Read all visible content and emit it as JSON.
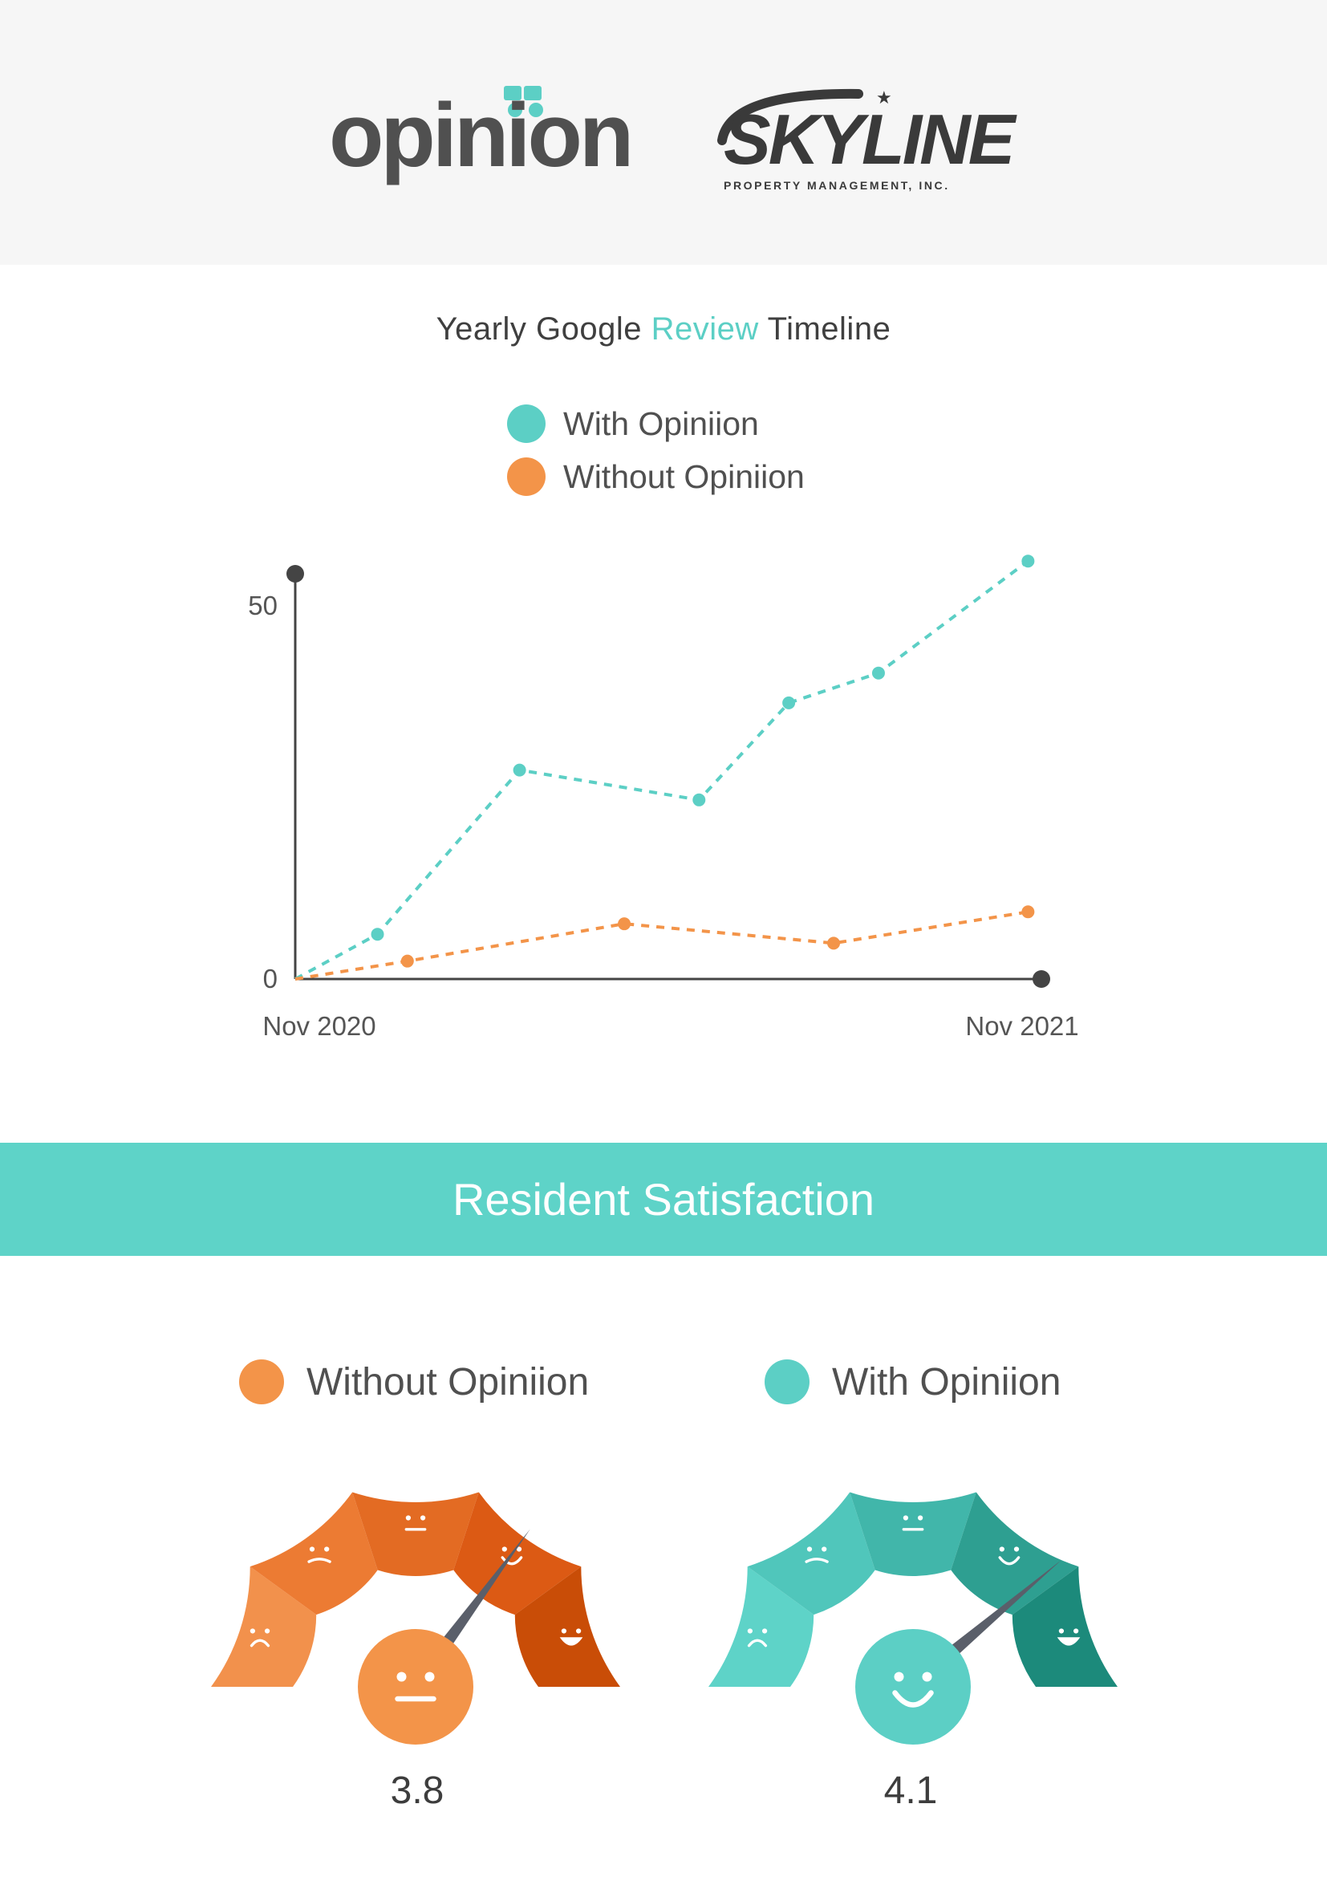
{
  "header": {
    "logo_left": {
      "text": "opinion"
    },
    "logo_right": {
      "text": "SKYLINE",
      "subtext": "PROPERTY MANAGEMENT, INC."
    }
  },
  "colors": {
    "teal": "#5ccfc5",
    "orange": "#f39449",
    "axis": "#444444"
  },
  "chart_data": {
    "type": "line",
    "title_parts": [
      "Yearly Google ",
      "Review",
      " Timeline"
    ],
    "ylim": [
      0,
      50
    ],
    "y_ticks": [
      "50",
      "0"
    ],
    "x_tick_labels": [
      "Nov 2020",
      "Nov 2021"
    ],
    "legend": {
      "placement": "top-center"
    },
    "series": [
      {
        "name": "With Opiniion",
        "color": "#5ccfc5",
        "x": [
          0,
          1.1,
          3.0,
          5.4,
          6.6,
          7.8,
          9.8
        ],
        "y": [
          0,
          6,
          28,
          24,
          37,
          41,
          56
        ]
      },
      {
        "name": "Without Opiniion",
        "color": "#f39449",
        "x": [
          0,
          1.5,
          4.4,
          7.2,
          9.8
        ],
        "y": [
          0,
          2.4,
          7.4,
          4.8,
          9
        ]
      }
    ]
  },
  "satisfaction": {
    "banner_title": "Resident Satisfaction",
    "gauges": [
      {
        "name": "Without Opiniion",
        "score": "3.8",
        "value": 3.8,
        "min": 1,
        "max": 5,
        "segment_colors": [
          "#f2914c",
          "#ec7b33",
          "#e36b23",
          "#dc5a14",
          "#c94d07"
        ],
        "face_color": "#f39449",
        "face": "neutral"
      },
      {
        "name": "With Opiniion",
        "score": "4.1",
        "value": 4.1,
        "min": 1,
        "max": 5,
        "segment_colors": [
          "#5ed3c8",
          "#50c6bb",
          "#41b6aa",
          "#2e9f91",
          "#1c8a7b"
        ],
        "face_color": "#5ccfc5",
        "face": "happy"
      }
    ]
  }
}
